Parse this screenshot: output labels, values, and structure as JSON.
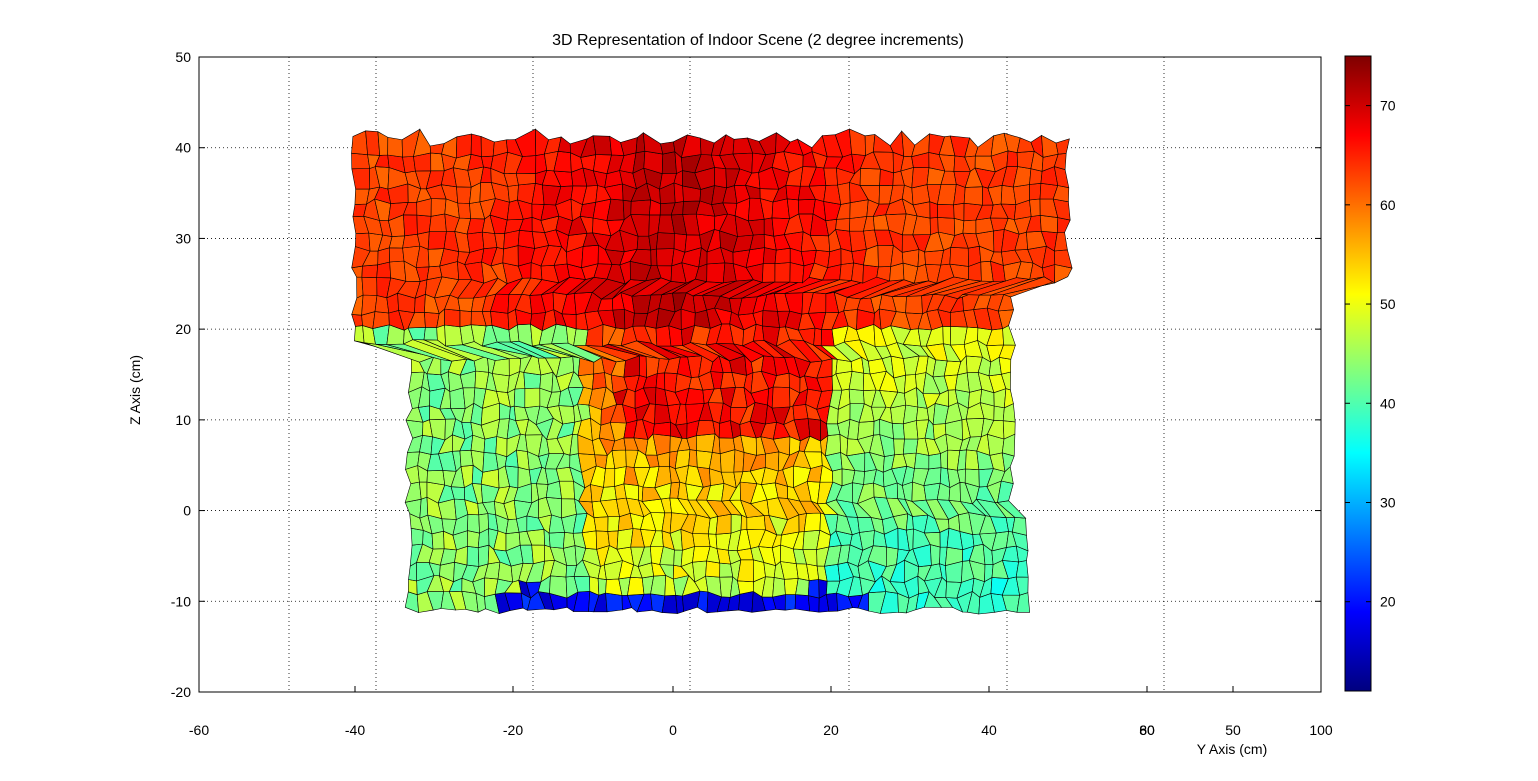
{
  "chart_data": {
    "type": "surface",
    "title": "3D Representation of Indoor Scene (2 degree increments)",
    "xlabel": "Y Axis (cm)",
    "ylabel": "Z Axis (cm)",
    "xlim": [
      -60,
      100
    ],
    "ylim": [
      -20,
      50
    ],
    "x_ticks": [
      "-60",
      "-40",
      "-20",
      "0",
      "20",
      "40",
      "60",
      "80",
      "50",
      "100"
    ],
    "x_tick_values": [
      -60,
      -40,
      -20,
      0,
      20,
      40,
      60,
      80,
      50,
      100
    ],
    "y_ticks": [
      "-20",
      "-10",
      "0",
      "10",
      "20",
      "30",
      "40",
      "50"
    ],
    "y_tick_values": [
      -20,
      -10,
      0,
      10,
      20,
      30,
      40,
      50
    ],
    "grid": true,
    "grid_style": "dotted",
    "colormap": "jet",
    "colorbar": {
      "range": [
        11,
        75
      ],
      "ticks": [
        "20",
        "30",
        "40",
        "50",
        "60",
        "70"
      ],
      "tick_values": [
        20,
        30,
        40,
        50,
        60,
        70
      ],
      "placement": "right"
    },
    "surface_extent": {
      "x_range": [
        -38,
        64
      ],
      "z_range": [
        -11,
        41
      ]
    },
    "surface_regions": [
      {
        "name": "upper band",
        "x_range": [
          -38,
          64
        ],
        "z_range": [
          18,
          40
        ],
        "color_value_range": [
          58,
          75
        ]
      },
      {
        "name": "central column",
        "x_range": [
          0,
          30
        ],
        "z_range": [
          8,
          30
        ],
        "color_value_range": [
          62,
          75
        ]
      },
      {
        "name": "left lower section",
        "x_range": [
          -30,
          -5
        ],
        "z_range": [
          -10,
          18
        ],
        "color_value_range": [
          42,
          52
        ]
      },
      {
        "name": "center lower section",
        "x_range": [
          -5,
          30
        ],
        "z_range": [
          -8,
          10
        ],
        "color_value_range": [
          40,
          60
        ]
      },
      {
        "name": "right section",
        "x_range": [
          30,
          58
        ],
        "z_range": [
          -10,
          25
        ],
        "color_value_range": [
          36,
          52
        ]
      },
      {
        "name": "floor edge",
        "x_range": [
          -18,
          35
        ],
        "z_range": [
          -11,
          -8
        ],
        "color_value_range": [
          12,
          25
        ]
      }
    ]
  },
  "colors": {
    "background": "#ffffff",
    "axes": "#000000",
    "grid": "#000000",
    "mesh_edges": "#000000"
  }
}
